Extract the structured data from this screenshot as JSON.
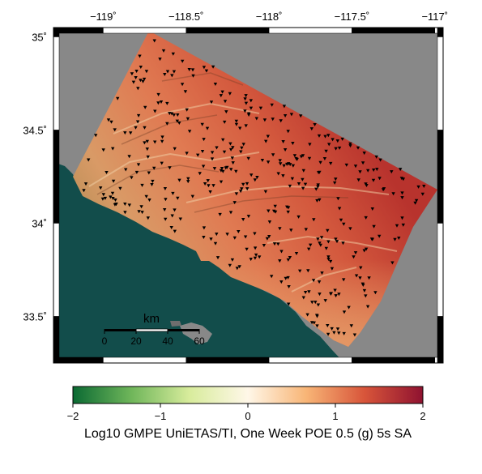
{
  "map": {
    "lon_ticks": [
      {
        "value": -119,
        "label": "−119˚"
      },
      {
        "value": -118.5,
        "label": "−118.5˚"
      },
      {
        "value": -118,
        "label": "−118˚"
      },
      {
        "value": -117.5,
        "label": "−117.5˚"
      },
      {
        "value": -117,
        "label": "−117˚"
      }
    ],
    "lat_ticks": [
      {
        "value": 35,
        "label": "35˚"
      },
      {
        "value": 34.5,
        "label": "34.5˚"
      },
      {
        "value": 34,
        "label": "34˚"
      },
      {
        "value": 33.5,
        "label": "33.5˚"
      }
    ],
    "lon_range": [
      -119.3,
      -116.95
    ],
    "lat_range": [
      33.25,
      35.05
    ],
    "colors": {
      "ocean": "#124d4b",
      "outside_region": "#888888",
      "island": "#888888",
      "sites": "#000000"
    }
  },
  "scale_bar": {
    "title": "km",
    "ticks": [
      "0",
      "20",
      "40",
      "60"
    ]
  },
  "colorbar": {
    "ticks": [
      "−2",
      "−1",
      "0",
      "1",
      "2"
    ],
    "range": [
      -2,
      2
    ],
    "stops": [
      "#0b6a33",
      "#6fb65a",
      "#d8ec9c",
      "#fff7e8",
      "#f8b576",
      "#d8553a",
      "#8f1230"
    ],
    "label": "Log10 GMPE UniETAS/TI, One Week POE 0.5 (g) 5s SA"
  }
}
